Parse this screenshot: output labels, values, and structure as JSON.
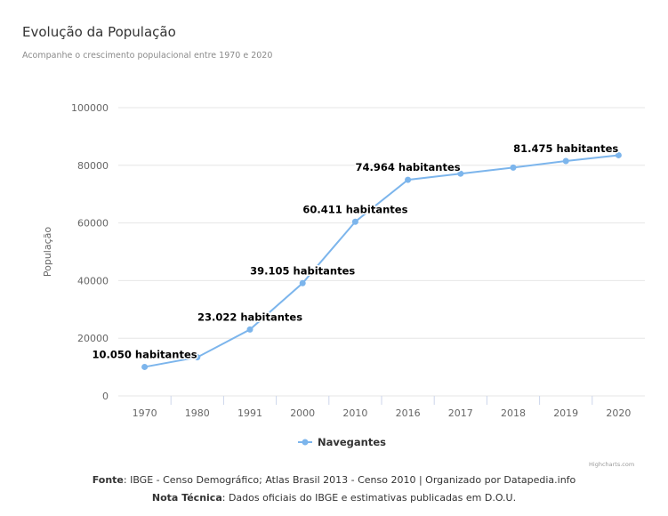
{
  "header": {
    "title": "Evolução da População",
    "subtitle": "Acompanhe o crescimento populacional entre 1970 e 2020"
  },
  "chart_data": {
    "type": "line",
    "title": "Evolução da População",
    "subtitle": "Acompanhe o crescimento populacional entre 1970 e 2020",
    "xlabel": "",
    "ylabel": "População",
    "categories": [
      "1970",
      "1980",
      "1991",
      "2000",
      "2010",
      "2016",
      "2017",
      "2018",
      "2019",
      "2020"
    ],
    "series": [
      {
        "name": "Navegantes",
        "values": [
          10050,
          13400,
          23022,
          39105,
          60411,
          74964,
          77100,
          79200,
          81475,
          83500
        ],
        "color": "#7cb5ec"
      }
    ],
    "data_labels": [
      {
        "index": 0,
        "text": "10.050 habitantes"
      },
      {
        "index": 2,
        "text": "23.022 habitantes"
      },
      {
        "index": 3,
        "text": "39.105 habitantes"
      },
      {
        "index": 4,
        "text": "60.411 habitantes"
      },
      {
        "index": 5,
        "text": "74.964 habitantes"
      },
      {
        "index": 8,
        "text": "81.475 habitantes"
      }
    ],
    "ylim": [
      0,
      100000
    ],
    "yticks": [
      "0",
      "20000",
      "40000",
      "60000",
      "80000",
      "100000"
    ],
    "grid": true,
    "legend_position": "bottom-center",
    "gridline_color": "#e6e6e6"
  },
  "credits": "Highcharts.com",
  "footer": {
    "source_label": "Fonte",
    "source_text": ": IBGE - Censo Demográfico; Atlas Brasil 2013 - Censo 2010 | Organizado por Datapedia.info",
    "note_label": "Nota Técnica",
    "note_text": ": Dados oficiais do IBGE e estimativas publicadas em D.O.U."
  }
}
